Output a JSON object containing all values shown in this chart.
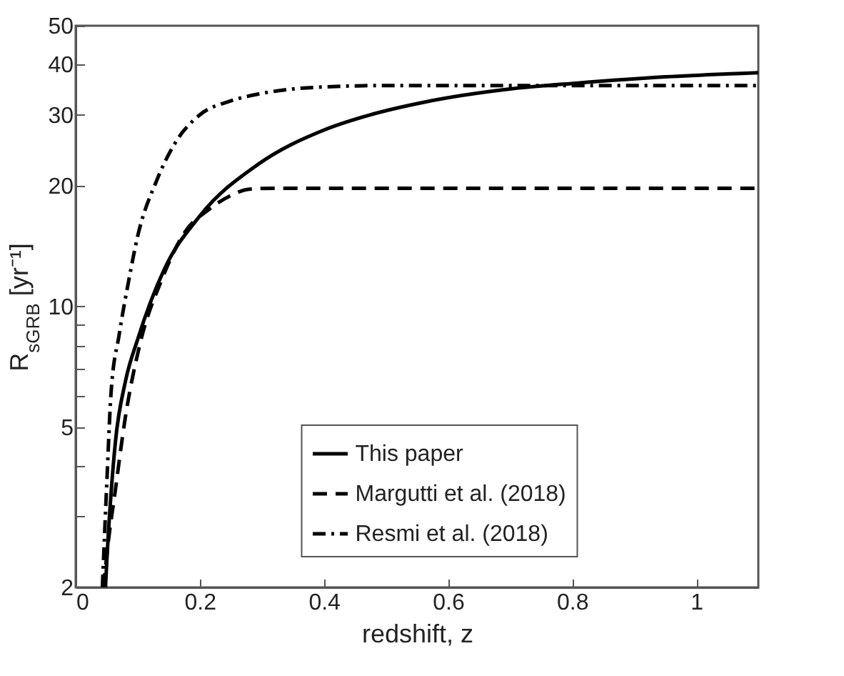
{
  "chart_data": {
    "type": "line",
    "xlabel": "redshift, z",
    "ylabel": "R$_{sGRB}$ [yr⁻¹]",
    "log": "y",
    "xlim": [
      0,
      1.1
    ],
    "ylim": [
      2,
      50
    ],
    "xticks": [
      0,
      0.2,
      0.4,
      0.6,
      0.8,
      1
    ],
    "yticks": [
      2,
      {
        "value": 3,
        "label": null
      },
      {
        "value": 4,
        "label": null
      },
      5,
      {
        "value": 6,
        "label": null
      },
      {
        "value": 7,
        "label": null
      },
      {
        "value": 8,
        "label": null
      },
      {
        "value": 9,
        "label": null
      },
      10,
      20,
      30,
      40,
      50
    ],
    "legend": "right",
    "grid": false,
    "series": [
      {
        "name": "This paper",
        "color": "#000000",
        "line_style": "solid",
        "x": [
          0.048,
          0.05,
          0.064,
          0.08,
          0.1,
          0.143,
          0.2,
          0.294,
          0.4,
          0.471,
          0.563,
          0.7,
          0.809,
          0.95,
          1.1
        ],
        "values": [
          2,
          2.3,
          4.6,
          6.5,
          8.3,
          12.4,
          16.8,
          22.6,
          27.5,
          29.9,
          32.3,
          34.8,
          36,
          37.3,
          38.2
        ]
      },
      {
        "name": "Margutti et al. (2018)",
        "color": "#000000",
        "line_style": "dashed",
        "x": [
          0.045,
          0.05,
          0.064,
          0.08,
          0.103,
          0.14,
          0.172,
          0.218,
          0.25,
          0.28,
          0.32,
          0.4,
          1.1
        ],
        "values": [
          2,
          2.4,
          3.5,
          5.3,
          8,
          11.8,
          15,
          17.6,
          18.9,
          19.6,
          19.7,
          19.7,
          19.7
        ]
      },
      {
        "name": "Resmi et al. (2018)",
        "color": "#000000",
        "line_style": "dashdot",
        "x": [
          0.043,
          0.05,
          0.057,
          0.07,
          0.085,
          0.1,
          0.13,
          0.16,
          0.2,
          0.25,
          0.294,
          0.35,
          0.4,
          0.5,
          0.56,
          1.1
        ],
        "values": [
          2,
          3.6,
          6.1,
          8.5,
          11.5,
          15,
          20.5,
          25.5,
          30,
          32.5,
          33.8,
          34.8,
          35.2,
          35.5,
          35.5,
          35.5
        ]
      }
    ]
  }
}
